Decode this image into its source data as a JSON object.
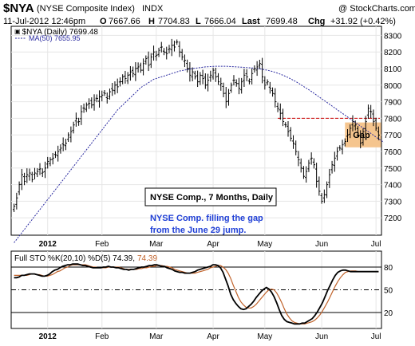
{
  "header": {
    "ticker": "$NYA",
    "name": "(NYSE Composite Index)",
    "exchange": "INDX",
    "credit": "@ StockCharts.com",
    "quote": {
      "date": "11-Jul-2012 12:46pm",
      "open_label": "O",
      "open": "7667.66",
      "high_label": "H",
      "high": "7704.83",
      "low_label": "L",
      "low": "7666.04",
      "last_label": "Last",
      "last": "7699.48",
      "chg_label": "Chg",
      "chg": "+31.92 (+0.42%)"
    }
  },
  "legend": {
    "price": "$NYA (Daily) 7699.48",
    "ma": "MA(50) 7655.95",
    "sto": "Full STO %K(20,10) %D(5) 74.39,",
    "sto_d": "74.39"
  },
  "annotations": {
    "box_title": "NYSE Comp., 7 Months, Daily",
    "note_line1": "NYSE Comp. filling the gap",
    "note_line2": "from the June 29 jump.",
    "gap_label": "Gap"
  },
  "colors": {
    "price_bars": "#000000",
    "ma_line": "#2a2aa0",
    "sto_k": "#000000",
    "sto_d": "#c0622a",
    "gap_fill": "#f5c58e",
    "gap_line": "#cc0000",
    "note_text": "#1f3fd6"
  },
  "chart_data": [
    {
      "type": "ohlc",
      "title": "$NYA (NYSE Composite Index) INDX",
      "ylim": [
        7100,
        8350
      ],
      "y_ticks": [
        7200,
        7300,
        7400,
        7500,
        7600,
        7700,
        7800,
        7900,
        8000,
        8100,
        8200,
        8300
      ],
      "x_ticks": [
        {
          "label": "2012",
          "i": 13,
          "bold": true
        },
        {
          "label": "Feb",
          "i": 34
        },
        {
          "label": "Mar",
          "i": 55
        },
        {
          "label": "Apr",
          "i": 77
        },
        {
          "label": "May",
          "i": 97
        },
        {
          "label": "Jun",
          "i": 119
        },
        {
          "label": "Jul",
          "i": 140
        }
      ],
      "close": [
        7270,
        7320,
        7400,
        7460,
        7420,
        7460,
        7470,
        7430,
        7470,
        7480,
        7495,
        7475,
        7500,
        7540,
        7550,
        7560,
        7580,
        7600,
        7620,
        7640,
        7650,
        7700,
        7720,
        7760,
        7800,
        7780,
        7840,
        7860,
        7880,
        7890,
        7880,
        7910,
        7920,
        7930,
        7940,
        7950,
        7920,
        7960,
        7970,
        8000,
        7990,
        8020,
        8050,
        8040,
        8060,
        8080,
        8070,
        8100,
        8110,
        8090,
        8130,
        8160,
        8120,
        8170,
        8200,
        8180,
        8210,
        8230,
        8200,
        8190,
        8220,
        8240,
        8230,
        8260,
        8200,
        8170,
        8150,
        8100,
        8060,
        8080,
        8050,
        8020,
        8060,
        8040,
        8000,
        8030,
        8060,
        8090,
        8050,
        8020,
        8010,
        7950,
        7900,
        7950,
        8000,
        8030,
        8010,
        7980,
        8020,
        8060,
        8050,
        8020,
        8070,
        8100,
        8110,
        8130,
        8050,
        8000,
        8020,
        7980,
        7950,
        7900,
        7860,
        7830,
        7780,
        7760,
        7720,
        7680,
        7650,
        7600,
        7550,
        7500,
        7450,
        7480,
        7530,
        7560,
        7520,
        7420,
        7360,
        7300,
        7340,
        7400,
        7460,
        7520,
        7560,
        7600,
        7620,
        7640,
        7660,
        7700,
        7740,
        7780,
        7760,
        7700,
        7650,
        7720,
        7780,
        7860,
        7840,
        7780,
        7740,
        7699
      ],
      "ma50": [
        7050,
        7070,
        7090,
        7110,
        7130,
        7150,
        7170,
        7190,
        7210,
        7230,
        7250,
        7270,
        7290,
        7310,
        7330,
        7350,
        7370,
        7390,
        7410,
        7430,
        7450,
        7470,
        7490,
        7510,
        7530,
        7550,
        7570,
        7590,
        7610,
        7630,
        7650,
        7670,
        7690,
        7710,
        7730,
        7750,
        7770,
        7790,
        7810,
        7830,
        7850,
        7865,
        7880,
        7895,
        7910,
        7925,
        7940,
        7955,
        7970,
        7985,
        7995,
        8005,
        8015,
        8025,
        8035,
        8040,
        8045,
        8050,
        8055,
        8060,
        8065,
        8070,
        8075,
        8080,
        8085,
        8088,
        8091,
        8094,
        8097,
        8100,
        8102,
        8104,
        8106,
        8108,
        8110,
        8111,
        8112,
        8113,
        8114,
        8114,
        8114,
        8114,
        8114,
        8113,
        8112,
        8111,
        8110,
        8109,
        8108,
        8107,
        8106,
        8105,
        8104,
        8102,
        8100,
        8098,
        8096,
        8093,
        8090,
        8086,
        8082,
        8077,
        8072,
        8066,
        8060,
        8053,
        8046,
        8038,
        8030,
        8021,
        8012,
        8002,
        7992,
        7982,
        7972,
        7962,
        7951,
        7940,
        7929,
        7918,
        7907,
        7896,
        7885,
        7874,
        7863,
        7852,
        7841,
        7830,
        7819,
        7808,
        7797,
        7786,
        7775,
        7764,
        7753,
        7742,
        7731,
        7720,
        7709,
        7698,
        7687,
        7676,
        7666,
        7656
      ],
      "gap_level": 7800,
      "gap_zone": [
        7625,
        7775
      ],
      "gap_start_index": 112
    },
    {
      "type": "line",
      "title": "Full STO %K(20,10) %D(5)",
      "ylim": [
        0,
        100
      ],
      "y_ticks": [
        20,
        50,
        80
      ],
      "series": [
        {
          "name": "%K",
          "values": [
            66,
            66,
            67,
            69,
            69,
            70,
            71,
            71,
            71,
            70,
            69,
            68,
            68,
            69,
            71,
            74,
            76,
            77,
            79,
            81,
            82,
            83,
            83,
            84,
            84,
            84,
            83,
            82,
            82,
            81,
            80,
            79,
            79,
            79,
            79,
            80,
            80,
            81,
            80,
            80,
            79,
            79,
            78,
            77,
            77,
            76,
            77,
            77,
            78,
            79,
            80,
            80,
            81,
            82,
            82,
            83,
            83,
            82,
            81,
            81,
            79,
            78,
            77,
            75,
            74,
            73,
            73,
            72,
            72,
            72,
            73,
            74,
            76,
            77,
            78,
            79,
            80,
            81,
            83,
            83,
            82,
            79,
            73,
            64,
            55,
            44,
            37,
            32,
            28,
            25,
            24,
            25,
            28,
            31,
            35,
            40,
            44,
            48,
            51,
            53,
            51,
            47,
            41,
            33,
            24,
            16,
            11,
            8,
            7,
            6,
            5,
            5,
            5,
            6,
            6,
            8,
            10,
            12,
            16,
            21,
            27,
            33,
            41,
            49,
            56,
            63,
            69,
            73,
            75,
            76,
            76,
            75,
            74,
            74,
            74,
            74,
            74,
            74,
            74,
            74,
            74,
            74,
            74,
            74
          ]
        },
        {
          "name": "%D",
          "values": [
            69,
            69,
            69,
            69,
            69,
            69,
            70,
            71,
            71,
            70,
            70,
            69,
            68,
            68,
            69,
            70,
            72,
            74,
            75,
            77,
            79,
            80,
            82,
            83,
            83,
            83,
            83,
            83,
            83,
            82,
            81,
            80,
            80,
            79,
            79,
            79,
            79,
            80,
            80,
            80,
            80,
            80,
            79,
            78,
            77,
            77,
            77,
            77,
            77,
            78,
            78,
            79,
            79,
            80,
            81,
            81,
            82,
            82,
            82,
            81,
            81,
            80,
            79,
            77,
            76,
            75,
            74,
            73,
            72,
            72,
            72,
            72,
            73,
            74,
            75,
            76,
            77,
            79,
            80,
            81,
            82,
            82,
            80,
            77,
            72,
            65,
            56,
            48,
            40,
            34,
            30,
            27,
            26,
            26,
            28,
            31,
            35,
            39,
            43,
            47,
            50,
            51,
            50,
            46,
            40,
            33,
            25,
            18,
            13,
            9,
            7,
            6,
            5,
            5,
            5,
            6,
            7,
            8,
            10,
            13,
            17,
            22,
            28,
            34,
            41,
            48,
            55,
            61,
            66,
            70,
            73,
            74,
            75,
            75,
            75,
            74,
            74,
            74,
            74,
            74,
            74,
            74,
            74,
            74
          ]
        }
      ],
      "last_k": 74.39,
      "last_d": 74.39
    }
  ]
}
